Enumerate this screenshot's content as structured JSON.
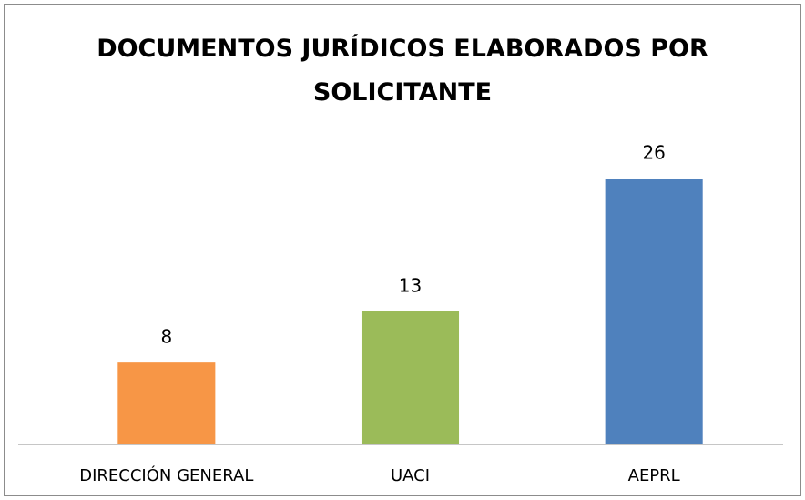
{
  "chart_data": {
    "type": "bar",
    "title": "DOCUMENTOS JURÍDICOS ELABORADOS POR SOLICITANTE",
    "categories": [
      "DIRECCIÓN GENERAL",
      "UACI",
      "AEPRL"
    ],
    "values": [
      8,
      13,
      26
    ],
    "colors": [
      "#f79646",
      "#9bbb59",
      "#4f81bd"
    ],
    "data_labels": true
  }
}
